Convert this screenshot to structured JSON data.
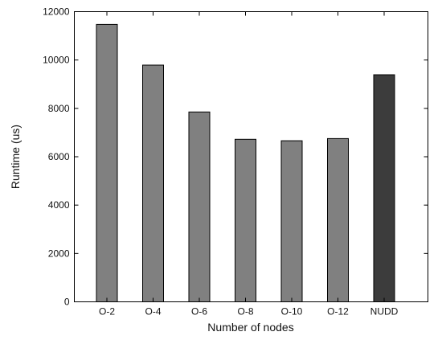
{
  "chart_data": {
    "type": "bar",
    "title": "",
    "xlabel": "Number of nodes",
    "ylabel": "Runtime (us)",
    "categories": [
      "O-2",
      "O-4",
      "O-6",
      "O-8",
      "O-10",
      "O-12",
      "NUDD"
    ],
    "values": [
      11470,
      9790,
      7850,
      6720,
      6660,
      6750,
      9390
    ],
    "ylim": [
      0,
      12000
    ],
    "yticks": [
      0,
      2000,
      4000,
      6000,
      8000,
      10000,
      12000
    ],
    "grid": false,
    "legend": "none",
    "bar_colors": [
      "#808080",
      "#808080",
      "#808080",
      "#808080",
      "#808080",
      "#808080",
      "#3c3c3c"
    ]
  }
}
